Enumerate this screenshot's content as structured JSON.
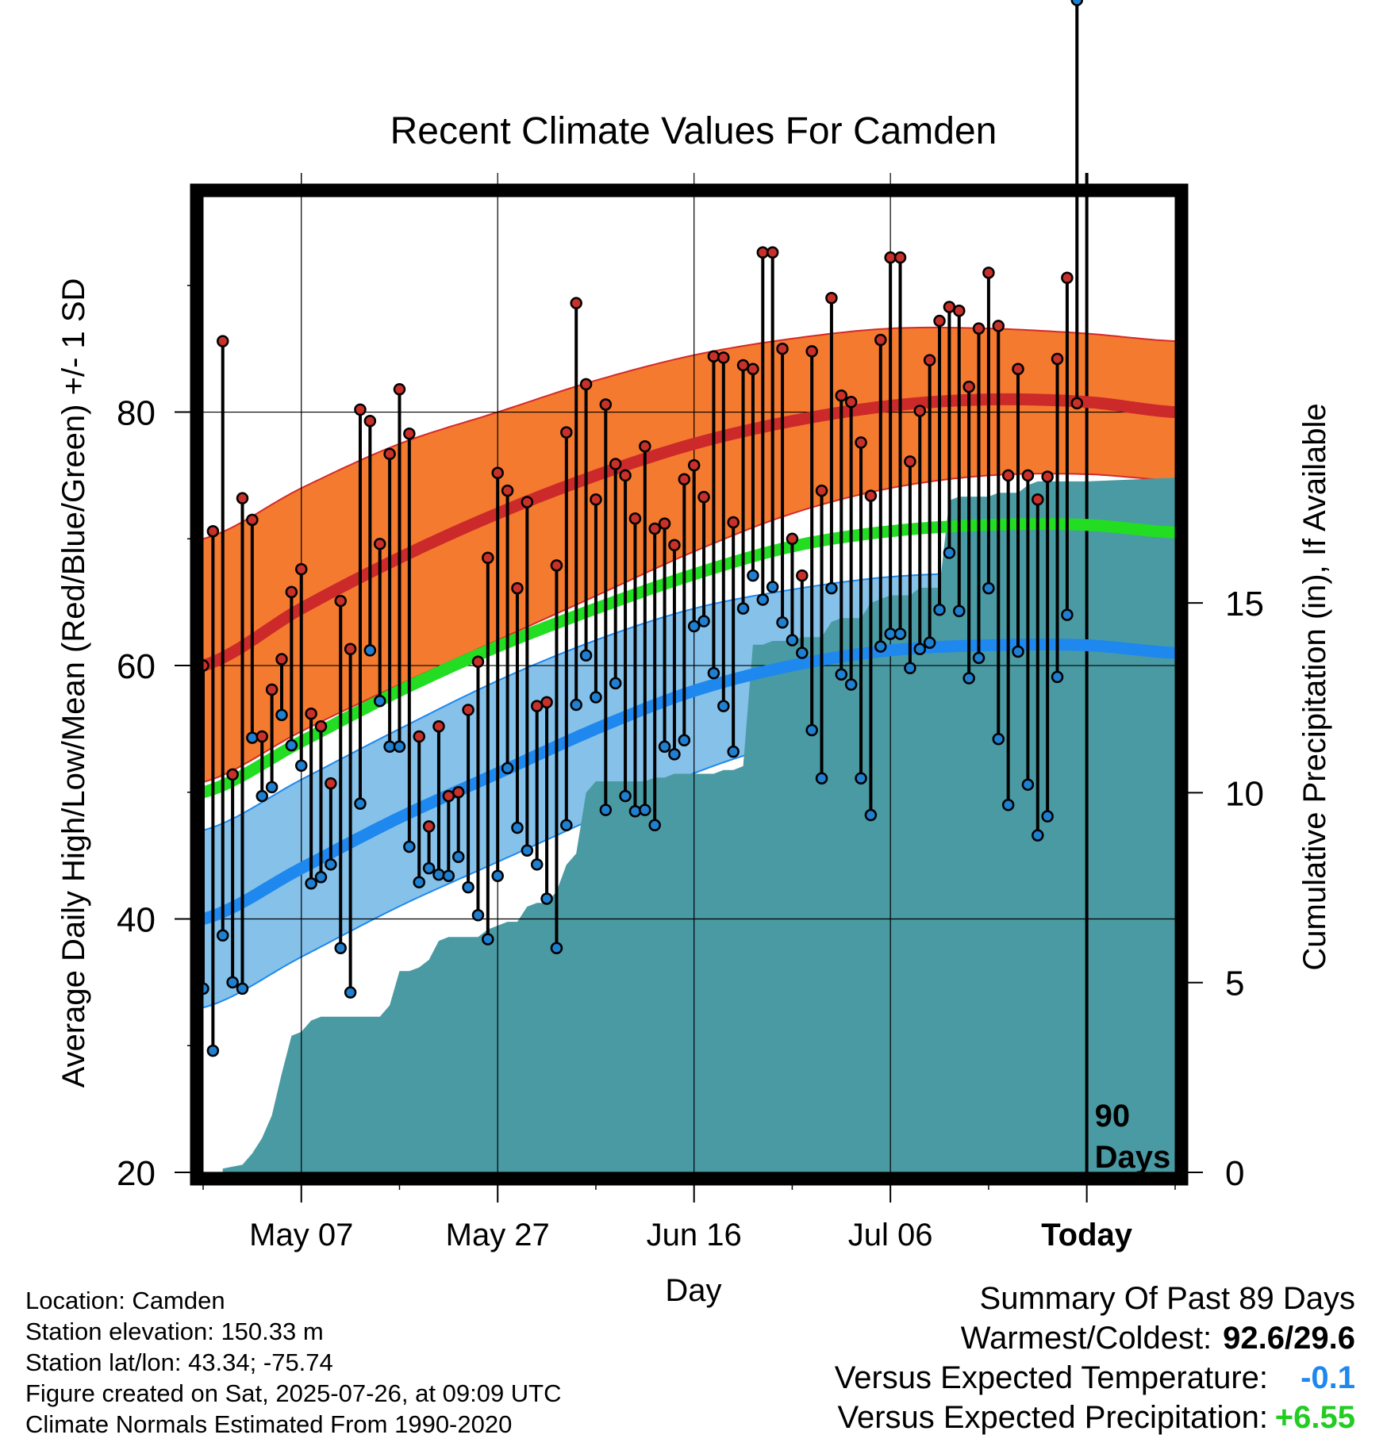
{
  "chart_data": {
    "type": "line",
    "title": "Recent Climate Values For Camden",
    "xlabel": "Day",
    "ylabel": "Average Daily High/Low/Mean (Red/Blue/Green) +/- 1 SD",
    "y2label": "Cumulative Precipitation (in), If Available",
    "x_tick_labels": [
      "May 07",
      "May 27",
      "Jun 16",
      "Jul 06",
      "Today"
    ],
    "y_ticks": [
      20,
      40,
      60,
      80
    ],
    "y2_ticks": [
      0,
      5,
      10,
      15
    ],
    "ylim": [
      20,
      97
    ],
    "y2lim": [
      0,
      25.7
    ],
    "grid": true,
    "today_annotation": "90\nDays",
    "series": [
      {
        "name": "Normal High",
        "color": "#cc2a2a",
        "day": [
          0,
          10,
          20,
          30,
          40,
          50,
          60,
          70,
          80,
          90,
          99
        ],
        "values": [
          60.0,
          64.5,
          68.5,
          72.0,
          75.0,
          77.5,
          79.3,
          80.5,
          81.0,
          80.8,
          80.0
        ]
      },
      {
        "name": "Normal High +1 SD",
        "day": [
          0,
          10,
          20,
          30,
          40,
          50,
          60,
          70,
          80,
          90,
          99
        ],
        "values": [
          70.0,
          74.0,
          77.5,
          80.0,
          82.5,
          84.5,
          85.8,
          86.6,
          86.6,
          86.2,
          85.6
        ]
      },
      {
        "name": "Normal High -1 SD",
        "day": [
          0,
          10,
          20,
          30,
          40,
          50,
          60,
          70,
          80,
          90,
          99
        ],
        "values": [
          50.8,
          54.8,
          58.5,
          62.0,
          65.5,
          69.0,
          72.0,
          74.0,
          75.0,
          75.1,
          74.6
        ]
      },
      {
        "name": "Normal Mean",
        "color": "#22dd22",
        "day": [
          0,
          10,
          20,
          30,
          40,
          50,
          60,
          70,
          80,
          90,
          99
        ],
        "values": [
          50.0,
          54.0,
          58.0,
          61.5,
          64.5,
          67.2,
          69.4,
          70.6,
          71.1,
          71.1,
          70.5
        ]
      },
      {
        "name": "Normal Low",
        "color": "#1e88ee",
        "day": [
          0,
          10,
          20,
          30,
          40,
          50,
          60,
          70,
          80,
          90,
          99
        ],
        "values": [
          40.0,
          44.0,
          48.0,
          51.5,
          55.0,
          58.0,
          60.0,
          61.2,
          61.6,
          61.6,
          61.0
        ]
      },
      {
        "name": "Normal Low +1 SD",
        "day": [
          0,
          10,
          20,
          30,
          40,
          50,
          60,
          70,
          80,
          90,
          99
        ],
        "values": [
          47.0,
          51.0,
          55.0,
          58.8,
          62.0,
          64.5,
          66.0,
          67.0,
          67.3,
          67.3,
          66.8
        ]
      },
      {
        "name": "Normal Low -1 SD",
        "day": [
          0,
          10,
          20,
          30,
          40,
          50,
          60,
          70,
          80,
          90,
          99
        ],
        "values": [
          33.0,
          37.0,
          41.0,
          44.5,
          48.0,
          51.5,
          54.0,
          55.5,
          56.0,
          56.0,
          55.5
        ]
      },
      {
        "name": "Daily High",
        "color": "#c8302a",
        "values": [
          60.0,
          70.6,
          85.6,
          51.4,
          73.2,
          71.5,
          54.4,
          58.1,
          60.5,
          65.8,
          67.6,
          56.2,
          55.2,
          50.7,
          65.1,
          61.3,
          80.2,
          79.3,
          69.6,
          76.7,
          81.8,
          78.3,
          54.4,
          47.3,
          55.2,
          49.7,
          50.0,
          56.5,
          60.3,
          68.5,
          75.2,
          73.8,
          66.1,
          72.9,
          56.8,
          57.1,
          67.9,
          78.4,
          88.6,
          82.2,
          73.1,
          80.6,
          75.9,
          75.0,
          71.6,
          77.3,
          70.8,
          71.2,
          69.5,
          74.7,
          75.8,
          73.3,
          84.4,
          84.3,
          71.3,
          83.7,
          83.4,
          92.6,
          92.6,
          85.0,
          70.0,
          67.1,
          84.8,
          73.8,
          89.0,
          81.3,
          80.8,
          77.6,
          73.4,
          85.7,
          92.2,
          92.2,
          76.1,
          80.1,
          84.1,
          87.2,
          88.3,
          88.0,
          82.0,
          86.6,
          91.0,
          86.8,
          75.0,
          83.4,
          75.0,
          73.1,
          74.9,
          84.2,
          90.6,
          80.7
        ]
      },
      {
        "name": "Daily Low",
        "color": "#1f7fd0",
        "values": [
          34.5,
          29.6,
          38.7,
          35.0,
          34.5,
          54.3,
          49.7,
          50.4,
          56.1,
          53.7,
          52.1,
          42.8,
          43.3,
          44.3,
          37.7,
          34.2,
          49.1,
          61.2,
          57.2,
          53.6,
          53.6,
          45.7,
          42.9,
          44.0,
          43.5,
          43.4,
          44.9,
          42.5,
          40.3,
          38.4,
          43.4,
          51.9,
          47.2,
          45.4,
          44.3,
          41.6,
          37.7,
          47.4,
          56.9,
          60.8,
          57.5,
          48.6,
          58.6,
          49.7,
          48.5,
          48.6,
          47.4,
          53.6,
          53.0,
          54.1,
          63.1,
          63.5,
          59.4,
          56.8,
          53.2,
          64.5,
          67.1,
          65.2,
          66.2,
          63.4,
          62.0,
          61.0,
          54.9,
          51.1,
          66.1,
          59.3,
          58.5,
          51.1,
          48.2,
          61.5,
          62.5,
          62.5,
          59.8,
          61.3,
          61.8,
          64.4,
          68.9,
          64.3,
          59.0,
          60.6,
          66.1,
          54.2,
          49.0,
          61.1,
          50.6,
          46.6,
          48.1,
          59.1,
          64.0
        ]
      },
      {
        "name": "Cumulative Precipitation",
        "color": "#4a9aa3",
        "day": [
          2,
          3,
          4,
          5,
          6,
          7,
          8,
          9,
          10,
          11,
          12,
          13,
          14,
          15,
          17,
          18,
          19,
          20,
          21,
          22,
          23,
          24,
          25,
          26,
          27,
          28,
          29,
          30,
          31,
          32,
          33,
          34,
          35,
          36,
          37,
          38,
          39,
          40,
          41,
          42,
          43,
          44,
          45,
          46,
          47,
          48,
          49,
          50,
          51,
          52,
          53,
          54,
          55,
          56,
          57,
          58,
          59,
          60,
          61,
          62,
          63,
          64,
          65,
          66,
          67,
          68,
          69,
          70,
          71,
          72,
          73,
          74,
          75,
          76,
          77,
          78,
          79,
          80,
          81,
          82,
          83,
          84,
          85,
          86,
          87,
          88,
          89,
          90,
          99
        ],
        "values": [
          0.1,
          0.15,
          0.2,
          0.5,
          0.9,
          1.5,
          2.6,
          3.6,
          3.7,
          4.0,
          4.1,
          4.1,
          4.1,
          4.1,
          4.1,
          4.1,
          4.4,
          5.3,
          5.3,
          5.4,
          5.6,
          6.1,
          6.2,
          6.2,
          6.2,
          6.2,
          6.4,
          6.5,
          6.6,
          6.6,
          7.0,
          7.1,
          7.1,
          7.4,
          8.1,
          8.4,
          10.0,
          10.3,
          10.3,
          10.3,
          10.3,
          10.3,
          10.3,
          10.4,
          10.4,
          10.5,
          10.5,
          10.5,
          10.5,
          10.5,
          10.6,
          10.6,
          10.7,
          13.9,
          13.9,
          14.0,
          14.0,
          14.0,
          14.1,
          14.1,
          14.1,
          14.5,
          14.6,
          14.6,
          14.6,
          15.0,
          15.1,
          15.2,
          15.2,
          15.2,
          15.4,
          15.4,
          15.4,
          17.7,
          17.8,
          17.8,
          17.8,
          17.8,
          17.9,
          17.9,
          17.9,
          18.1,
          18.2,
          18.2,
          18.2,
          18.2,
          18.2,
          18.2,
          18.3
        ]
      }
    ]
  },
  "footer": {
    "location": "Location: Camden",
    "elevation": "Station elevation: 150.33 m",
    "latlon": "Station lat/lon: 43.34; -75.74",
    "created": "Figure created on Sat, 2025-07-26, at 09:09 UTC",
    "normals": "Climate Normals Estimated From 1990-2020"
  },
  "summary": {
    "title": "Summary Of Past 89 Days",
    "warm_cold_label": "Warmest/Coldest:",
    "warm_cold_value": "92.6/29.6",
    "temp_label": "Versus Expected Temperature:",
    "temp_value": "-0.1",
    "temp_color": "#1e88ee",
    "precip_label": "Versus Expected Precipitation:",
    "precip_value": "+6.55",
    "precip_color": "#22cc22"
  }
}
